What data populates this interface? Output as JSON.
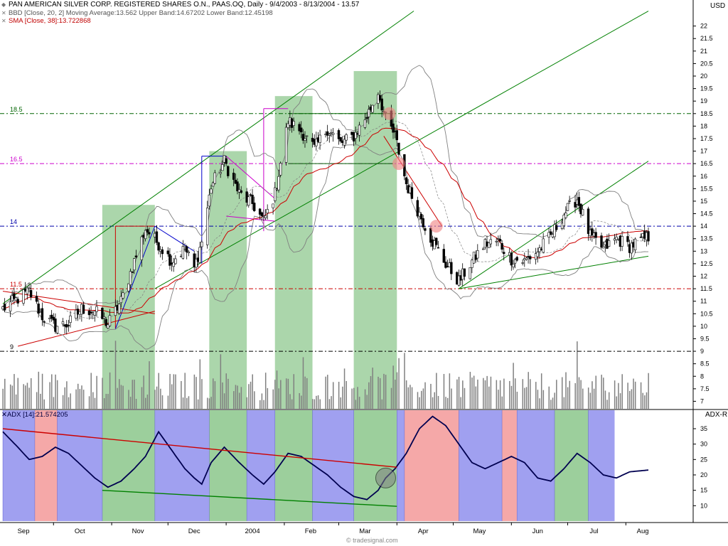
{
  "header": {
    "title": "PAN AMERICAN SILVER CORP. REGISTERED SHARES O.N., PAAS.OQ, Daily - 9/4/2003 - 8/13/2004 - 13.57",
    "bbd_label": "BBD [Close, 20, 2] Moving Average:13.562 Upper Band:14.67202 Lower Band:12.45198",
    "sma_label": "SMA [Close, 38]:13.722868",
    "currency": "USD",
    "adx_label": "ADX [14]:21.574205",
    "adxr_label": "ADX-R",
    "credit": "© tradesignal.com"
  },
  "colors": {
    "candle": "#000000",
    "volume": "#808080",
    "bollinger": "#808080",
    "sma": "#cc0000",
    "adx_line": "#000050",
    "zone_green": "#9ccf9c",
    "zone_blue": "#a0a0f0",
    "zone_red": "#f5a8a8",
    "channel": "#008000"
  },
  "chart_data": [
    {
      "type": "candlestick",
      "title": "PAN AMERICAN SILVER CORP. REGISTERED SHARES O.N., PAAS.OQ, Daily - 9/4/2003 - 8/13/2004 - 13.57",
      "y_axis_ticks": [
        7,
        7.5,
        8,
        8.5,
        9,
        9.5,
        10,
        10.5,
        11,
        11.5,
        12,
        12.5,
        13,
        13.5,
        14,
        14.5,
        15,
        15.5,
        16,
        16.5,
        17,
        17.5,
        18,
        18.5,
        19,
        19.5,
        20,
        20.5,
        21,
        21.5,
        22
      ],
      "ylim": [
        6.7,
        22.7
      ],
      "x_axis_labels": [
        "Sep",
        "Oct",
        "Nov",
        "Dec",
        "2004",
        "Feb",
        "Mar",
        "Apr",
        "May",
        "Jun",
        "Jul",
        "Aug"
      ],
      "horizontal_levels": [
        {
          "value": 18.5,
          "label": "18.5",
          "color": "#006400"
        },
        {
          "value": 16.5,
          "label": "16.5",
          "color": "#cc00cc"
        },
        {
          "value": 14,
          "label": "14",
          "color": "#0000aa"
        },
        {
          "value": 11.5,
          "label": "11.5",
          "color": "#cc0000"
        },
        {
          "value": 9,
          "label": "9",
          "color": "#000000"
        }
      ],
      "close_path": [
        [
          "2003-09-04",
          10.7
        ],
        [
          "2003-09-12",
          11.1
        ],
        [
          "2003-09-18",
          11.4
        ],
        [
          "2003-09-25",
          10.4
        ],
        [
          "2003-10-02",
          10.0
        ],
        [
          "2003-10-09",
          10.1
        ],
        [
          "2003-10-16",
          10.7
        ],
        [
          "2003-10-23",
          10.6
        ],
        [
          "2003-10-30",
          10.1
        ],
        [
          "2003-11-06",
          11.0
        ],
        [
          "2003-11-13",
          12.6
        ],
        [
          "2003-11-19",
          13.9
        ],
        [
          "2003-11-26",
          13.3
        ],
        [
          "2003-12-03",
          12.6
        ],
        [
          "2003-12-10",
          13.1
        ],
        [
          "2003-12-15",
          12.3
        ],
        [
          "2003-12-19",
          13.4
        ],
        [
          "2003-12-24",
          15.6
        ],
        [
          "2003-12-31",
          16.6
        ],
        [
          "2004-01-08",
          15.3
        ],
        [
          "2004-01-15",
          14.9
        ],
        [
          "2004-01-21",
          14.2
        ],
        [
          "2004-01-27",
          15.3
        ],
        [
          "2004-02-03",
          18.2
        ],
        [
          "2004-02-10",
          17.8
        ],
        [
          "2004-02-17",
          17.1
        ],
        [
          "2004-02-24",
          17.9
        ],
        [
          "2004-03-02",
          17.3
        ],
        [
          "2004-03-09",
          17.6
        ],
        [
          "2004-03-16",
          18.4
        ],
        [
          "2004-03-22",
          19.4
        ],
        [
          "2004-03-26",
          18.3
        ],
        [
          "2004-03-31",
          17.6
        ],
        [
          "2004-04-06",
          15.7
        ],
        [
          "2004-04-13",
          14.5
        ],
        [
          "2004-04-20",
          13.4
        ],
        [
          "2004-04-27",
          12.5
        ],
        [
          "2004-05-04",
          11.8
        ],
        [
          "2004-05-11",
          12.6
        ],
        [
          "2004-05-18",
          13.3
        ],
        [
          "2004-05-25",
          13.4
        ],
        [
          "2004-06-01",
          12.7
        ],
        [
          "2004-06-08",
          12.6
        ],
        [
          "2004-06-15",
          13.0
        ],
        [
          "2004-06-22",
          13.6
        ],
        [
          "2004-06-29",
          14.5
        ],
        [
          "2004-07-06",
          15.1
        ],
        [
          "2004-07-13",
          13.6
        ],
        [
          "2004-07-20",
          13.1
        ],
        [
          "2004-07-27",
          13.5
        ],
        [
          "2004-08-03",
          13.2
        ],
        [
          "2004-08-13",
          13.57
        ]
      ],
      "sma_38": {
        "name": "SMA [Close, 38]",
        "last": 13.722868
      },
      "bollinger": {
        "name": "BBD [Close, 20, 2]",
        "moving_average": 13.562,
        "upper_band": 14.67202,
        "lower_band": 12.45198
      },
      "markers_price": [
        18.5,
        16.5,
        14.0
      ]
    },
    {
      "type": "line",
      "title": "ADX [14]:21.574205",
      "y_axis_ticks": [
        10,
        15,
        20,
        25,
        30,
        35
      ],
      "ylim": [
        5,
        41
      ],
      "series": [
        {
          "name": "ADX [14]",
          "values": [
            [
              "2003-09-04",
              34
            ],
            [
              "2003-09-12",
              29
            ],
            [
              "2003-09-18",
              25
            ],
            [
              "2003-09-25",
              26
            ],
            [
              "2003-10-02",
              29
            ],
            [
              "2003-10-09",
              27
            ],
            [
              "2003-10-16",
              23
            ],
            [
              "2003-10-23",
              19
            ],
            [
              "2003-10-30",
              16
            ],
            [
              "2003-11-06",
              18
            ],
            [
              "2003-11-13",
              22
            ],
            [
              "2003-11-19",
              26
            ],
            [
              "2003-11-26",
              34
            ],
            [
              "2003-12-03",
              28
            ],
            [
              "2003-12-10",
              22
            ],
            [
              "2003-12-15",
              19
            ],
            [
              "2003-12-19",
              17
            ],
            [
              "2003-12-24",
              24
            ],
            [
              "2003-12-31",
              29
            ],
            [
              "2004-01-08",
              24
            ],
            [
              "2004-01-15",
              20
            ],
            [
              "2004-01-21",
              17
            ],
            [
              "2004-01-27",
              21
            ],
            [
              "2004-02-03",
              27
            ],
            [
              "2004-02-10",
              26
            ],
            [
              "2004-02-17",
              23
            ],
            [
              "2004-02-24",
              20
            ],
            [
              "2004-03-02",
              16
            ],
            [
              "2004-03-09",
              13
            ],
            [
              "2004-03-16",
              12
            ],
            [
              "2004-03-22",
              15
            ],
            [
              "2004-03-26",
              19
            ],
            [
              "2004-03-31",
              22
            ],
            [
              "2004-04-06",
              27
            ],
            [
              "2004-04-13",
              35
            ],
            [
              "2004-04-20",
              39
            ],
            [
              "2004-04-27",
              36
            ],
            [
              "2004-05-04",
              30
            ],
            [
              "2004-05-11",
              24
            ],
            [
              "2004-05-18",
              22
            ],
            [
              "2004-05-25",
              24
            ],
            [
              "2004-06-01",
              26
            ],
            [
              "2004-06-08",
              24
            ],
            [
              "2004-06-15",
              19
            ],
            [
              "2004-06-22",
              18
            ],
            [
              "2004-06-29",
              22
            ],
            [
              "2004-07-06",
              27
            ],
            [
              "2004-07-13",
              24
            ],
            [
              "2004-07-20",
              20
            ],
            [
              "2004-07-27",
              19
            ],
            [
              "2004-08-03",
              21
            ],
            [
              "2004-08-13",
              21.574205
            ]
          ]
        }
      ],
      "circle_marker": 19
    }
  ]
}
